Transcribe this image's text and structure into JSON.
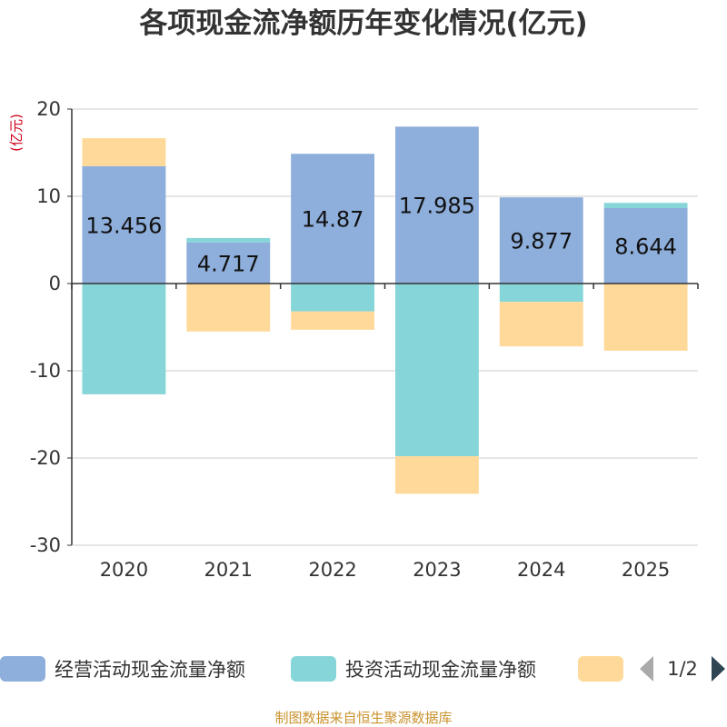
{
  "title": "各项现金流净额历年变化情况(亿元)",
  "footer": "制图数据来自恒生聚源数据库",
  "legend_pager": "1/2",
  "chart_data": {
    "type": "bar",
    "stacked": true,
    "title": "各项现金流净额历年变化情况(亿元)",
    "ylabel": "(亿元)",
    "xlabel": "",
    "ylim": [
      -30,
      20
    ],
    "yticks": [
      20,
      10,
      0,
      -10,
      -20,
      -30
    ],
    "categories": [
      "2020",
      "2021",
      "2022",
      "2023",
      "2024",
      "2025"
    ],
    "series": [
      {
        "name": "经营活动现金流量净额",
        "color": "#8eaedb",
        "values": [
          13.456,
          4.717,
          14.87,
          17.985,
          9.877,
          8.644
        ],
        "data_labels": [
          "13.456",
          "4.717",
          "14.87",
          "17.985",
          "9.877",
          "8.644"
        ]
      },
      {
        "name": "投资活动现金流量净额",
        "color": "#86d5d8",
        "values": [
          -12.7,
          0.5,
          -3.2,
          -19.8,
          -2.1,
          0.6
        ]
      },
      {
        "name": "",
        "color": "#ffd999",
        "values": [
          3.2,
          -5.5,
          -2.1,
          -4.3,
          -5.1,
          -7.7
        ]
      }
    ]
  }
}
